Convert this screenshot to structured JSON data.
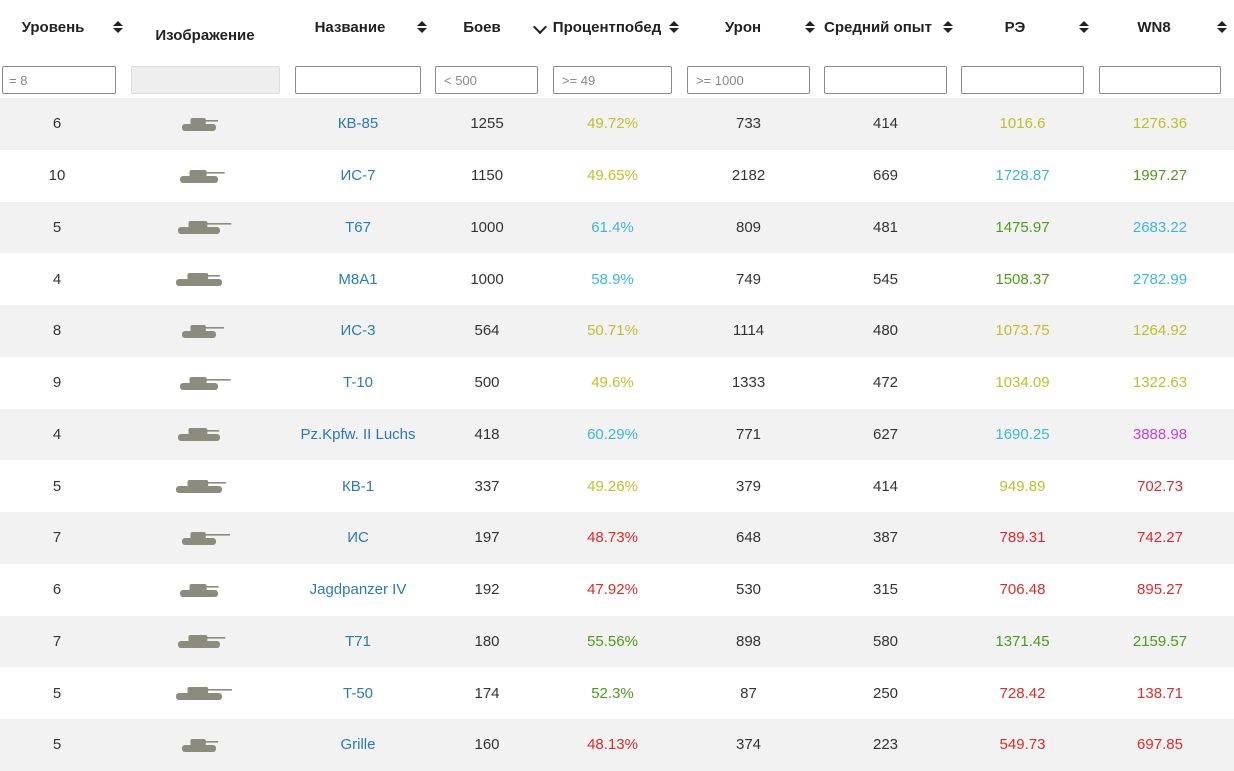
{
  "colors": {
    "yellow": "#bfbf2a",
    "cyan": "#3ab8d6",
    "green": "#4e9a1a",
    "red": "#dd2a2a",
    "purple": "#c042e0",
    "link": "#2a7ab8",
    "row_alt": "#f2f2f2"
  },
  "columns": [
    {
      "key": "tier",
      "label": "Уровень",
      "sort": "both"
    },
    {
      "key": "image",
      "label": "Изображение",
      "sort": "none"
    },
    {
      "key": "name",
      "label": "Название",
      "sort": "both"
    },
    {
      "key": "battles",
      "label": "Боев",
      "sort": "desc"
    },
    {
      "key": "winrate",
      "label": "Процент победы",
      "label_line1": "Процент",
      "label_line2": "побед",
      "sort": "both"
    },
    {
      "key": "damage",
      "label": "Урон",
      "sort": "both"
    },
    {
      "key": "avg_xp",
      "label": "Средний опыт",
      "sort": "both"
    },
    {
      "key": "re",
      "label": "РЭ",
      "sort": "both"
    },
    {
      "key": "wn8",
      "label": "WN8",
      "sort": "both"
    }
  ],
  "filters": {
    "tier": "= 8",
    "image": "",
    "name": "",
    "battles": "< 500",
    "winrate": ">= 49",
    "damage": ">= 1000",
    "avg_xp": "",
    "re": "",
    "wn8": ""
  },
  "rows": [
    {
      "tier": "6",
      "icon": "tank-icon",
      "name": "КВ-85",
      "battles": "1255",
      "winrate": "49.72%",
      "winrate_color": "yellow",
      "damage": "733",
      "avg_xp": "414",
      "re": "1016.6",
      "re_color": "yellow",
      "wn8": "1276.36",
      "wn8_color": "yellow"
    },
    {
      "tier": "10",
      "icon": "tank-icon",
      "name": "ИС-7",
      "battles": "1150",
      "winrate": "49.65%",
      "winrate_color": "yellow",
      "damage": "2182",
      "avg_xp": "669",
      "re": "1728.87",
      "re_color": "cyan",
      "wn8": "1997.27",
      "wn8_color": "green"
    },
    {
      "tier": "5",
      "icon": "tank-icon",
      "name": "T67",
      "battles": "1000",
      "winrate": "61.4%",
      "winrate_color": "cyan",
      "damage": "809",
      "avg_xp": "481",
      "re": "1475.97",
      "re_color": "green",
      "wn8": "2683.22",
      "wn8_color": "cyan"
    },
    {
      "tier": "4",
      "icon": "tank-icon",
      "name": "M8A1",
      "battles": "1000",
      "winrate": "58.9%",
      "winrate_color": "cyan",
      "damage": "749",
      "avg_xp": "545",
      "re": "1508.37",
      "re_color": "green",
      "wn8": "2782.99",
      "wn8_color": "cyan"
    },
    {
      "tier": "8",
      "icon": "tank-icon",
      "name": "ИС-3",
      "battles": "564",
      "winrate": "50.71%",
      "winrate_color": "yellow",
      "damage": "1114",
      "avg_xp": "480",
      "re": "1073.75",
      "re_color": "yellow",
      "wn8": "1264.92",
      "wn8_color": "yellow"
    },
    {
      "tier": "9",
      "icon": "tank-icon",
      "name": "T-10",
      "battles": "500",
      "winrate": "49.6%",
      "winrate_color": "yellow",
      "damage": "1333",
      "avg_xp": "472",
      "re": "1034.09",
      "re_color": "yellow",
      "wn8": "1322.63",
      "wn8_color": "yellow"
    },
    {
      "tier": "4",
      "icon": "tank-icon",
      "name": "Pz.Kpfw. II Luchs",
      "battles": "418",
      "winrate": "60.29%",
      "winrate_color": "cyan",
      "damage": "771",
      "avg_xp": "627",
      "re": "1690.25",
      "re_color": "cyan",
      "wn8": "3888.98",
      "wn8_color": "purple"
    },
    {
      "tier": "5",
      "icon": "tank-icon",
      "name": "КВ-1",
      "battles": "337",
      "winrate": "49.26%",
      "winrate_color": "yellow",
      "damage": "379",
      "avg_xp": "414",
      "re": "949.89",
      "re_color": "yellow",
      "wn8": "702.73",
      "wn8_color": "red"
    },
    {
      "tier": "7",
      "icon": "tank-icon",
      "name": "ИС",
      "battles": "197",
      "winrate": "48.73%",
      "winrate_color": "red",
      "damage": "648",
      "avg_xp": "387",
      "re": "789.31",
      "re_color": "red",
      "wn8": "742.27",
      "wn8_color": "red"
    },
    {
      "tier": "6",
      "icon": "tank-icon",
      "name": "Jagdpanzer IV",
      "battles": "192",
      "winrate": "47.92%",
      "winrate_color": "red",
      "damage": "530",
      "avg_xp": "315",
      "re": "706.48",
      "re_color": "red",
      "wn8": "895.27",
      "wn8_color": "red"
    },
    {
      "tier": "7",
      "icon": "tank-icon",
      "name": "T71",
      "battles": "180",
      "winrate": "55.56%",
      "winrate_color": "green",
      "damage": "898",
      "avg_xp": "580",
      "re": "1371.45",
      "re_color": "green",
      "wn8": "2159.57",
      "wn8_color": "green"
    },
    {
      "tier": "5",
      "icon": "tank-icon",
      "name": "T-50",
      "battles": "174",
      "winrate": "52.3%",
      "winrate_color": "green",
      "damage": "87",
      "avg_xp": "250",
      "re": "728.42",
      "re_color": "red",
      "wn8": "138.71",
      "wn8_color": "red"
    },
    {
      "tier": "5",
      "icon": "tank-icon",
      "name": "Grille",
      "battles": "160",
      "winrate": "48.13%",
      "winrate_color": "red",
      "damage": "374",
      "avg_xp": "223",
      "re": "549.73",
      "re_color": "red",
      "wn8": "697.85",
      "wn8_color": "red"
    }
  ]
}
